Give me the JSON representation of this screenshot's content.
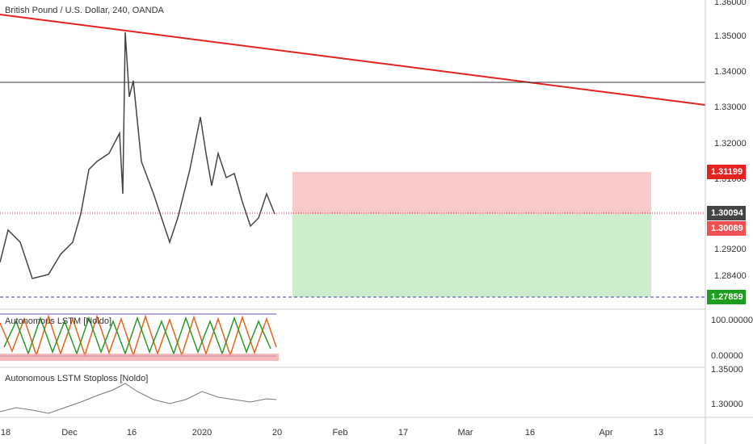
{
  "header": {
    "title": "British Pound / U.S. Dollar, 240, OANDA"
  },
  "price_axis": {
    "labels": [
      "1.36000",
      "1.35000",
      "1.34000",
      "1.33000",
      "1.32000",
      "1.31000",
      "1.29200",
      "1.28400"
    ],
    "badges": [
      "1.31199",
      "1.30094",
      "1.30089",
      "1.27859"
    ]
  },
  "indicators": [
    {
      "title": "Autonomous LSTM [Noldo]",
      "axis": [
        "100.00000",
        "0.00000"
      ]
    },
    {
      "title": "Autonomous LSTM Stoploss [Noldo]",
      "axis": [
        "1.35000",
        "1.30000"
      ]
    }
  ],
  "time_axis": [
    "18",
    "Dec",
    "16",
    "2020",
    "20",
    "Feb",
    "17",
    "Mar",
    "16",
    "Apr",
    "13"
  ]
}
